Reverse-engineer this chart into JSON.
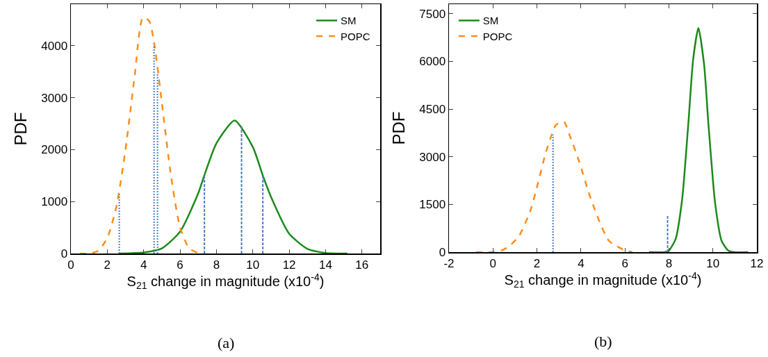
{
  "chart_data": [
    {
      "type": "line",
      "xlabel": "S$_{21}$ change in magnitude (x10$^{-4}$)",
      "ylabel": "PDF",
      "xlim": [
        0,
        17
      ],
      "xticks": [
        0,
        2,
        4,
        6,
        8,
        10,
        12,
        14,
        16
      ],
      "ylim": [
        0,
        4800
      ],
      "yticks": [
        0,
        1000,
        2000,
        3000,
        4000
      ],
      "legend": "top right",
      "grid": false,
      "annotations": [
        "(a)"
      ],
      "series": [
        {
          "name": "SM",
          "color": "#1a8a1a",
          "line_style": "solid",
          "x": [
            2.65,
            4,
            5,
            6,
            7,
            7.33,
            8,
            9,
            10,
            10.55,
            11,
            12,
            13,
            14,
            15.2
          ],
          "values": [
            0,
            20,
            100,
            420,
            1160,
            1500,
            2120,
            2560,
            2050,
            1500,
            1090,
            380,
            90,
            10,
            0
          ]
        },
        {
          "name": "POPC",
          "color": "#ff8c1a",
          "line_style": "dashed",
          "x": [
            0.5,
            1,
            1.5,
            2,
            2.5,
            3,
            3.5,
            3.95,
            4.3,
            4.6,
            5,
            5.5,
            6,
            6.5,
            7,
            7.2
          ],
          "values": [
            0,
            0,
            50,
            300,
            900,
            2000,
            3400,
            4540,
            4480,
            4000,
            2900,
            1500,
            500,
            100,
            10,
            0
          ]
        },
        {
          "color": "#4a7fc1",
          "line_style": "dotted",
          "x": [
            2.66,
            2.66
          ],
          "values": [
            0,
            1140
          ]
        },
        {
          "color": "#4a7fc1",
          "line_style": "dotted",
          "x": [
            4.57,
            4.57
          ],
          "values": [
            0,
            3990
          ]
        },
        {
          "color": "#4a7fc1",
          "line_style": "dotted",
          "x": [
            4.76,
            4.76
          ],
          "values": [
            0,
            3450
          ]
        },
        {
          "color": "#4a7fc1",
          "line_style": "dashed",
          "x": [
            7.34,
            7.34
          ],
          "values": [
            0,
            1490
          ]
        },
        {
          "color": "#4a7fc1",
          "line_style": "dashed",
          "x": [
            9.38,
            9.38
          ],
          "values": [
            0,
            2450
          ]
        },
        {
          "color": "#4a7fc1",
          "line_style": "dashed",
          "x": [
            10.55,
            10.55
          ],
          "values": [
            0,
            1490
          ]
        }
      ]
    },
    {
      "type": "line",
      "xlabel": "S$_{21}$ change in magnitude (x10$^{-4}$)",
      "ylabel": "PDF",
      "xlim": [
        -2,
        12
      ],
      "xticks": [
        -2,
        0,
        2,
        4,
        6,
        8,
        10,
        12
      ],
      "ylim": [
        0,
        7800
      ],
      "yticks": [
        0,
        1500,
        3000,
        4500,
        6000,
        7500
      ],
      "legend": "top left",
      "grid": false,
      "annotations": [
        "(b)"
      ],
      "series": [
        {
          "name": "SM",
          "color": "#1a8a1a",
          "line_style": "solid",
          "x": [
            7.1,
            7.8,
            8,
            8.3,
            8.6,
            8.9,
            9.1,
            9.34,
            9.6,
            9.8,
            10.1,
            10.4,
            10.7,
            11,
            11.6
          ],
          "values": [
            0,
            0,
            50,
            400,
            1650,
            4200,
            6050,
            7050,
            5900,
            4000,
            1550,
            350,
            50,
            0,
            0
          ]
        },
        {
          "name": "POPC",
          "color": "#ff8c1a",
          "line_style": "dashed",
          "x": [
            -0.77,
            0.02,
            0.39,
            0.76,
            1.18,
            1.7,
            2.02,
            2.39,
            2.7,
            2.86,
            3.23,
            3.5,
            3.92,
            4.34,
            4.76,
            5.28,
            6.02,
            6.34
          ],
          "values": [
            0,
            0,
            50,
            200,
            500,
            1300,
            2100,
            3100,
            3750,
            4000,
            4100,
            3650,
            2850,
            1900,
            1100,
            350,
            50,
            0
          ]
        },
        {
          "color": "#4a7fc1",
          "line_style": "dotted",
          "x": [
            2.73,
            2.73
          ],
          "values": [
            0,
            3700
          ]
        },
        {
          "color": "#4a7fc1",
          "line_style": "dashed",
          "x": [
            7.94,
            7.94
          ],
          "values": [
            0,
            1150
          ]
        }
      ]
    }
  ]
}
